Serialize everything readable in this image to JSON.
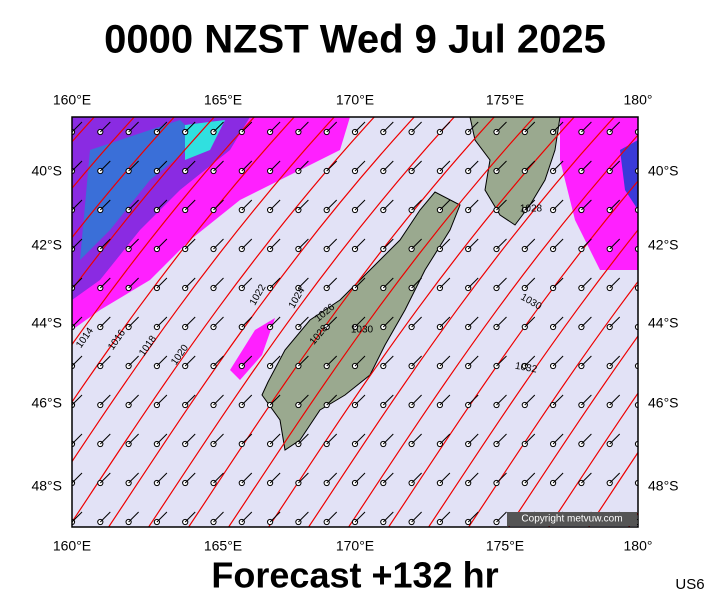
{
  "header": {
    "title": "0000 NZST Wed 9 Jul 2025"
  },
  "map": {
    "longitude_labels": [
      "160°E",
      "165°E",
      "170°E",
      "175°E",
      "180°"
    ],
    "latitude_labels": [
      "40°S",
      "42°S",
      "44°S",
      "46°S",
      "48°S"
    ],
    "isobar_labels": [
      "1014",
      "1016",
      "1018",
      "1020",
      "1022",
      "1024",
      "1026",
      "1028",
      "1030",
      "1028",
      "1030",
      "1032"
    ],
    "copyright": "Copyright metvuw.com"
  },
  "footer": {
    "forecast": "Forecast +132 hr",
    "code": "US6"
  }
}
